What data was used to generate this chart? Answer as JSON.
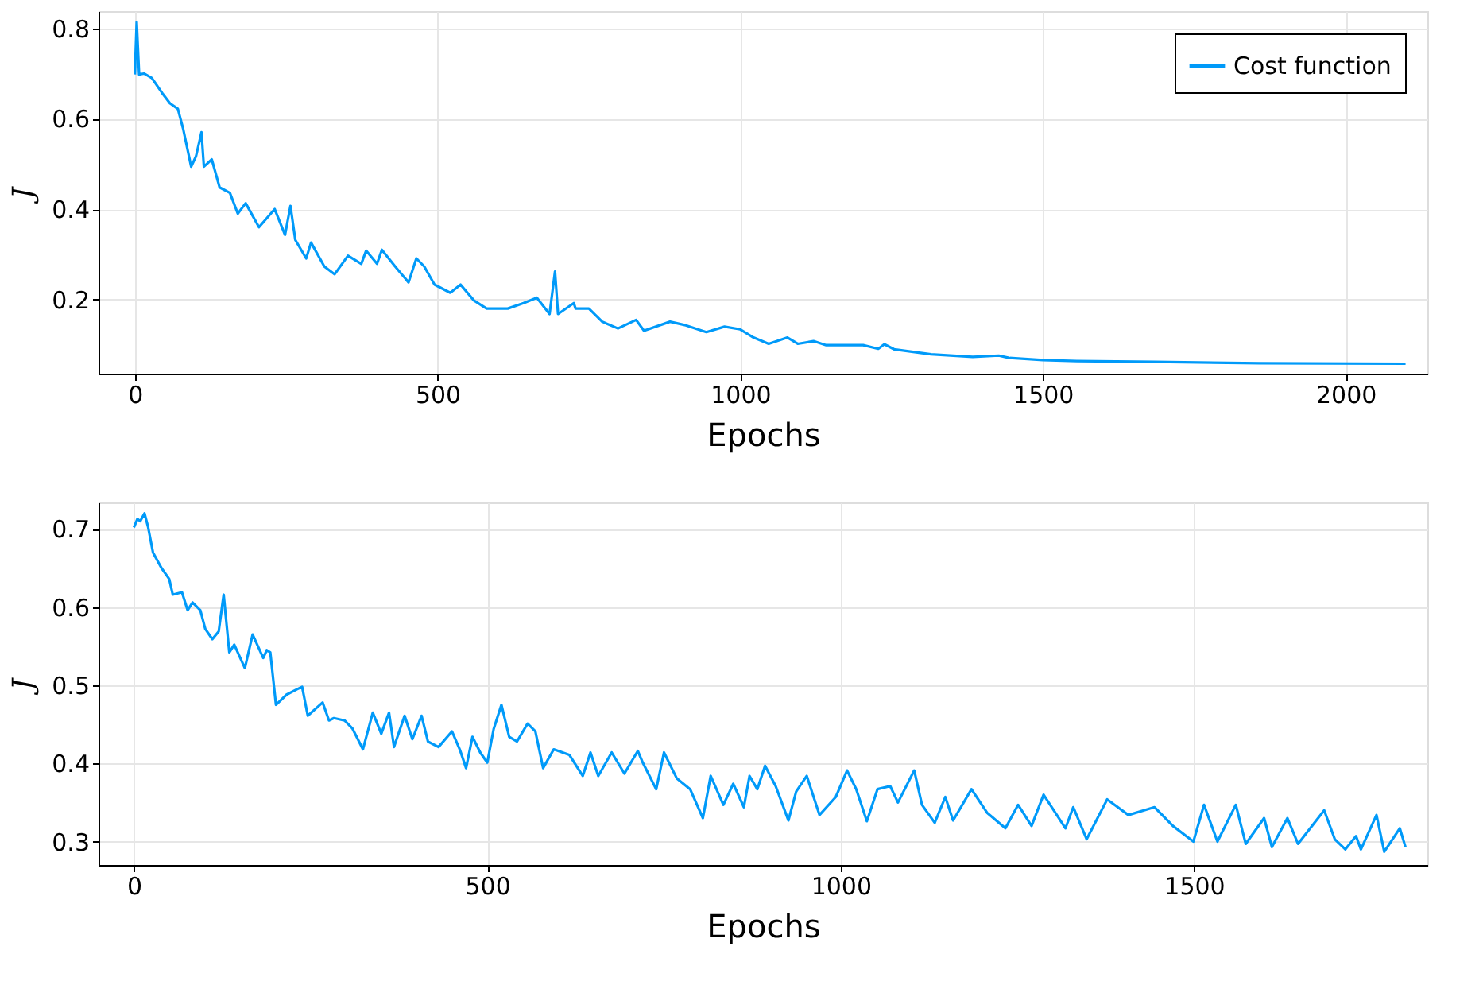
{
  "chart_data": [
    {
      "type": "line",
      "xlabel": "Epochs",
      "ylabel": "J",
      "xlim": [
        -60,
        2135
      ],
      "ylim": [
        0.036,
        0.838
      ],
      "xticks": [
        0,
        500,
        1000,
        1500,
        2000
      ],
      "yticks": [
        0.2,
        0.4,
        0.6,
        0.8
      ],
      "grid": true,
      "legend": "top right",
      "line_style": "solid",
      "marker": "none",
      "series": [
        {
          "name": "Cost function",
          "color": "#009af9",
          "x": [
            0,
            3,
            7,
            15,
            28,
            45,
            58,
            71,
            80,
            93,
            101,
            110,
            114,
            127,
            140,
            157,
            170,
            183,
            205,
            231,
            248,
            257,
            265,
            283,
            291,
            313,
            330,
            352,
            374,
            382,
            400,
            408,
            430,
            452,
            465,
            478,
            495,
            521,
            538,
            560,
            581,
            616,
            642,
            664,
            685,
            694,
            699,
            725,
            728,
            750,
            772,
            798,
            828,
            841,
            884,
            910,
            944,
            974,
            1000,
            1022,
            1047,
            1078,
            1095,
            1121,
            1142,
            1203,
            1228,
            1238,
            1254,
            1315,
            1384,
            1427,
            1444,
            1500,
            1556,
            1685,
            1858,
            2099
          ],
          "values": [
            0.698,
            0.814,
            0.698,
            0.7,
            0.69,
            0.657,
            0.634,
            0.622,
            0.576,
            0.494,
            0.517,
            0.57,
            0.494,
            0.51,
            0.448,
            0.436,
            0.39,
            0.413,
            0.36,
            0.4,
            0.343,
            0.407,
            0.332,
            0.291,
            0.326,
            0.273,
            0.256,
            0.297,
            0.279,
            0.308,
            0.279,
            0.31,
            0.273,
            0.238,
            0.291,
            0.273,
            0.233,
            0.215,
            0.233,
            0.198,
            0.18,
            0.18,
            0.192,
            0.204,
            0.168,
            0.262,
            0.168,
            0.192,
            0.18,
            0.18,
            0.151,
            0.136,
            0.155,
            0.131,
            0.151,
            0.143,
            0.128,
            0.14,
            0.134,
            0.116,
            0.102,
            0.116,
            0.102,
            0.108,
            0.099,
            0.099,
            0.091,
            0.101,
            0.09,
            0.079,
            0.073,
            0.076,
            0.071,
            0.066,
            0.064,
            0.062,
            0.059,
            0.058
          ]
        }
      ]
    },
    {
      "type": "line",
      "xlabel": "Epochs",
      "ylabel": "J",
      "xlim": [
        -50,
        1830
      ],
      "ylim": [
        0.27,
        0.734
      ],
      "xticks": [
        0,
        500,
        1000,
        1500
      ],
      "yticks": [
        0.3,
        0.4,
        0.5,
        0.6,
        0.7
      ],
      "grid": true,
      "line_style": "solid",
      "marker": "none",
      "series": [
        {
          "color": "#009af9",
          "x": [
            0,
            5,
            9,
            15,
            20,
            27,
            39,
            50,
            55,
            68,
            76,
            83,
            94,
            101,
            111,
            120,
            127,
            135,
            142,
            157,
            168,
            176,
            183,
            188,
            193,
            201,
            216,
            231,
            238,
            246,
            267,
            276,
            283,
            298,
            309,
            324,
            338,
            350,
            361,
            368,
            383,
            394,
            407,
            416,
            431,
            450,
            461,
            470,
            479,
            490,
            500,
            509,
            520,
            531,
            542,
            557,
            568,
            579,
            594,
            616,
            635,
            646,
            657,
            676,
            694,
            713,
            720,
            739,
            750,
            768,
            787,
            805,
            816,
            834,
            848,
            863,
            871,
            882,
            893,
            908,
            926,
            937,
            952,
            970,
            993,
            1009,
            1022,
            1037,
            1052,
            1070,
            1081,
            1104,
            1115,
            1133,
            1148,
            1159,
            1185,
            1207,
            1233,
            1251,
            1270,
            1287,
            1318,
            1329,
            1348,
            1377,
            1407,
            1444,
            1470,
            1499,
            1514,
            1533,
            1559,
            1573,
            1599,
            1610,
            1632,
            1647,
            1684,
            1699,
            1714,
            1729,
            1736,
            1758,
            1769,
            1791,
            1799
          ],
          "values": [
            0.702,
            0.713,
            0.71,
            0.72,
            0.703,
            0.67,
            0.65,
            0.636,
            0.616,
            0.619,
            0.596,
            0.606,
            0.596,
            0.572,
            0.559,
            0.569,
            0.616,
            0.542,
            0.552,
            0.522,
            0.565,
            0.549,
            0.535,
            0.545,
            0.542,
            0.475,
            0.488,
            0.495,
            0.498,
            0.461,
            0.478,
            0.455,
            0.458,
            0.455,
            0.445,
            0.418,
            0.465,
            0.438,
            0.465,
            0.421,
            0.461,
            0.431,
            0.461,
            0.428,
            0.421,
            0.441,
            0.418,
            0.394,
            0.434,
            0.414,
            0.401,
            0.444,
            0.475,
            0.434,
            0.428,
            0.451,
            0.441,
            0.394,
            0.418,
            0.411,
            0.384,
            0.414,
            0.384,
            0.414,
            0.387,
            0.416,
            0.401,
            0.367,
            0.414,
            0.381,
            0.367,
            0.33,
            0.384,
            0.347,
            0.374,
            0.344,
            0.384,
            0.367,
            0.397,
            0.371,
            0.327,
            0.364,
            0.384,
            0.334,
            0.357,
            0.391,
            0.367,
            0.326,
            0.367,
            0.371,
            0.35,
            0.391,
            0.347,
            0.324,
            0.357,
            0.327,
            0.367,
            0.337,
            0.317,
            0.347,
            0.32,
            0.36,
            0.317,
            0.344,
            0.303,
            0.354,
            0.334,
            0.344,
            0.32,
            0.3,
            0.347,
            0.3,
            0.347,
            0.297,
            0.33,
            0.293,
            0.33,
            0.297,
            0.34,
            0.303,
            0.29,
            0.307,
            0.29,
            0.334,
            0.287,
            0.317,
            0.293
          ]
        }
      ]
    }
  ]
}
